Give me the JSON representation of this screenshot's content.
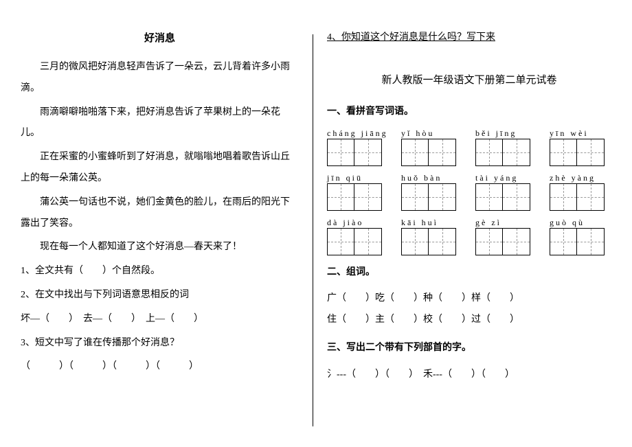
{
  "left": {
    "title": "好消息",
    "paragraphs": [
      "三月的微风把好消息轻声告诉了一朵云，云儿背着许多小雨滴。",
      "雨滴噼噼啪啪落下来，把好消息告诉了苹果树上的一朵花儿。",
      "正在采蜜的小蜜蜂听到了好消息，就嗡嗡地唱着歌告诉山丘上的每一朵蒲公英。",
      "蒲公英一句话也不说，她们金黄色的脸儿，在雨后的阳光下露出了笑容。",
      "现在每一个人都知道了这个好消息—春天来了！"
    ],
    "q1": "1、全文共有（　　）个自然段。",
    "q2": "2、在文中找出与下列词语意思相反的词",
    "q2a": "坏—（　　）　去—（　　）　上—（　　）",
    "q3": "3、短文中写了谁在传播那个好消息？",
    "q3a": "（　　　）（　　　）（　　　）（　　　）",
    "q4": "4、你知道这个好消息是什么吗？写下来"
  },
  "right": {
    "subtitle": "新人教版一年级语文下册第二单元试卷",
    "s1": "一、看拼音写词语。",
    "pinyin_rows": [
      [
        "cháng jiāng",
        "yǐ hòu",
        "běi jīng",
        "yīn wèi"
      ],
      [
        "jīn qiū",
        "huǒ bàn",
        "tài yáng",
        "zhè yàng"
      ],
      [
        "dà jiào",
        "kāi huì",
        "gè zì",
        "guò qù"
      ]
    ],
    "s2": "二、组词。",
    "zuci1": "广（　　）吃（　　）种（　　）样（　　）",
    "zuci2": "住（　　）主（　　）校（　　）过（　　）",
    "s3": "三、写出二个带有下列部首的字。",
    "bushou": "氵---（　　）（　　）　禾---（　　）（　　）"
  }
}
